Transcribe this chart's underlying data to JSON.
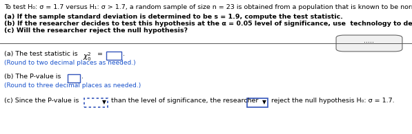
{
  "bg_color": "#ffffff",
  "text_color": "#000000",
  "blue_color": "#1a53cc",
  "dark_blue": "#1a3c8c",
  "title_line": "To test H₀: σ = 1.7 versus H₁: σ > 1.7, a random sample of size n = 23 is obtained from a population that is known to be normally distributed.",
  "line_a": "(a) If the sample standard deviation is determined to be s = 1.9, compute the test statistic.",
  "line_b": "(b) If the researcher decides to test this hypothesis at the α = 0.05 level of significance, use  technology to determine the P-value.",
  "line_c": "(c) Will the researcher reject the null hypothesis?",
  "ans_a_round": "(Round to two decimal places as needed.)",
  "ans_b_prefix": "(b) The P-value is",
  "ans_b_round": "(Round to three decimal places as needed.)",
  "dots_text": ".....",
  "font_size": 6.8,
  "small_font_size": 6.5
}
